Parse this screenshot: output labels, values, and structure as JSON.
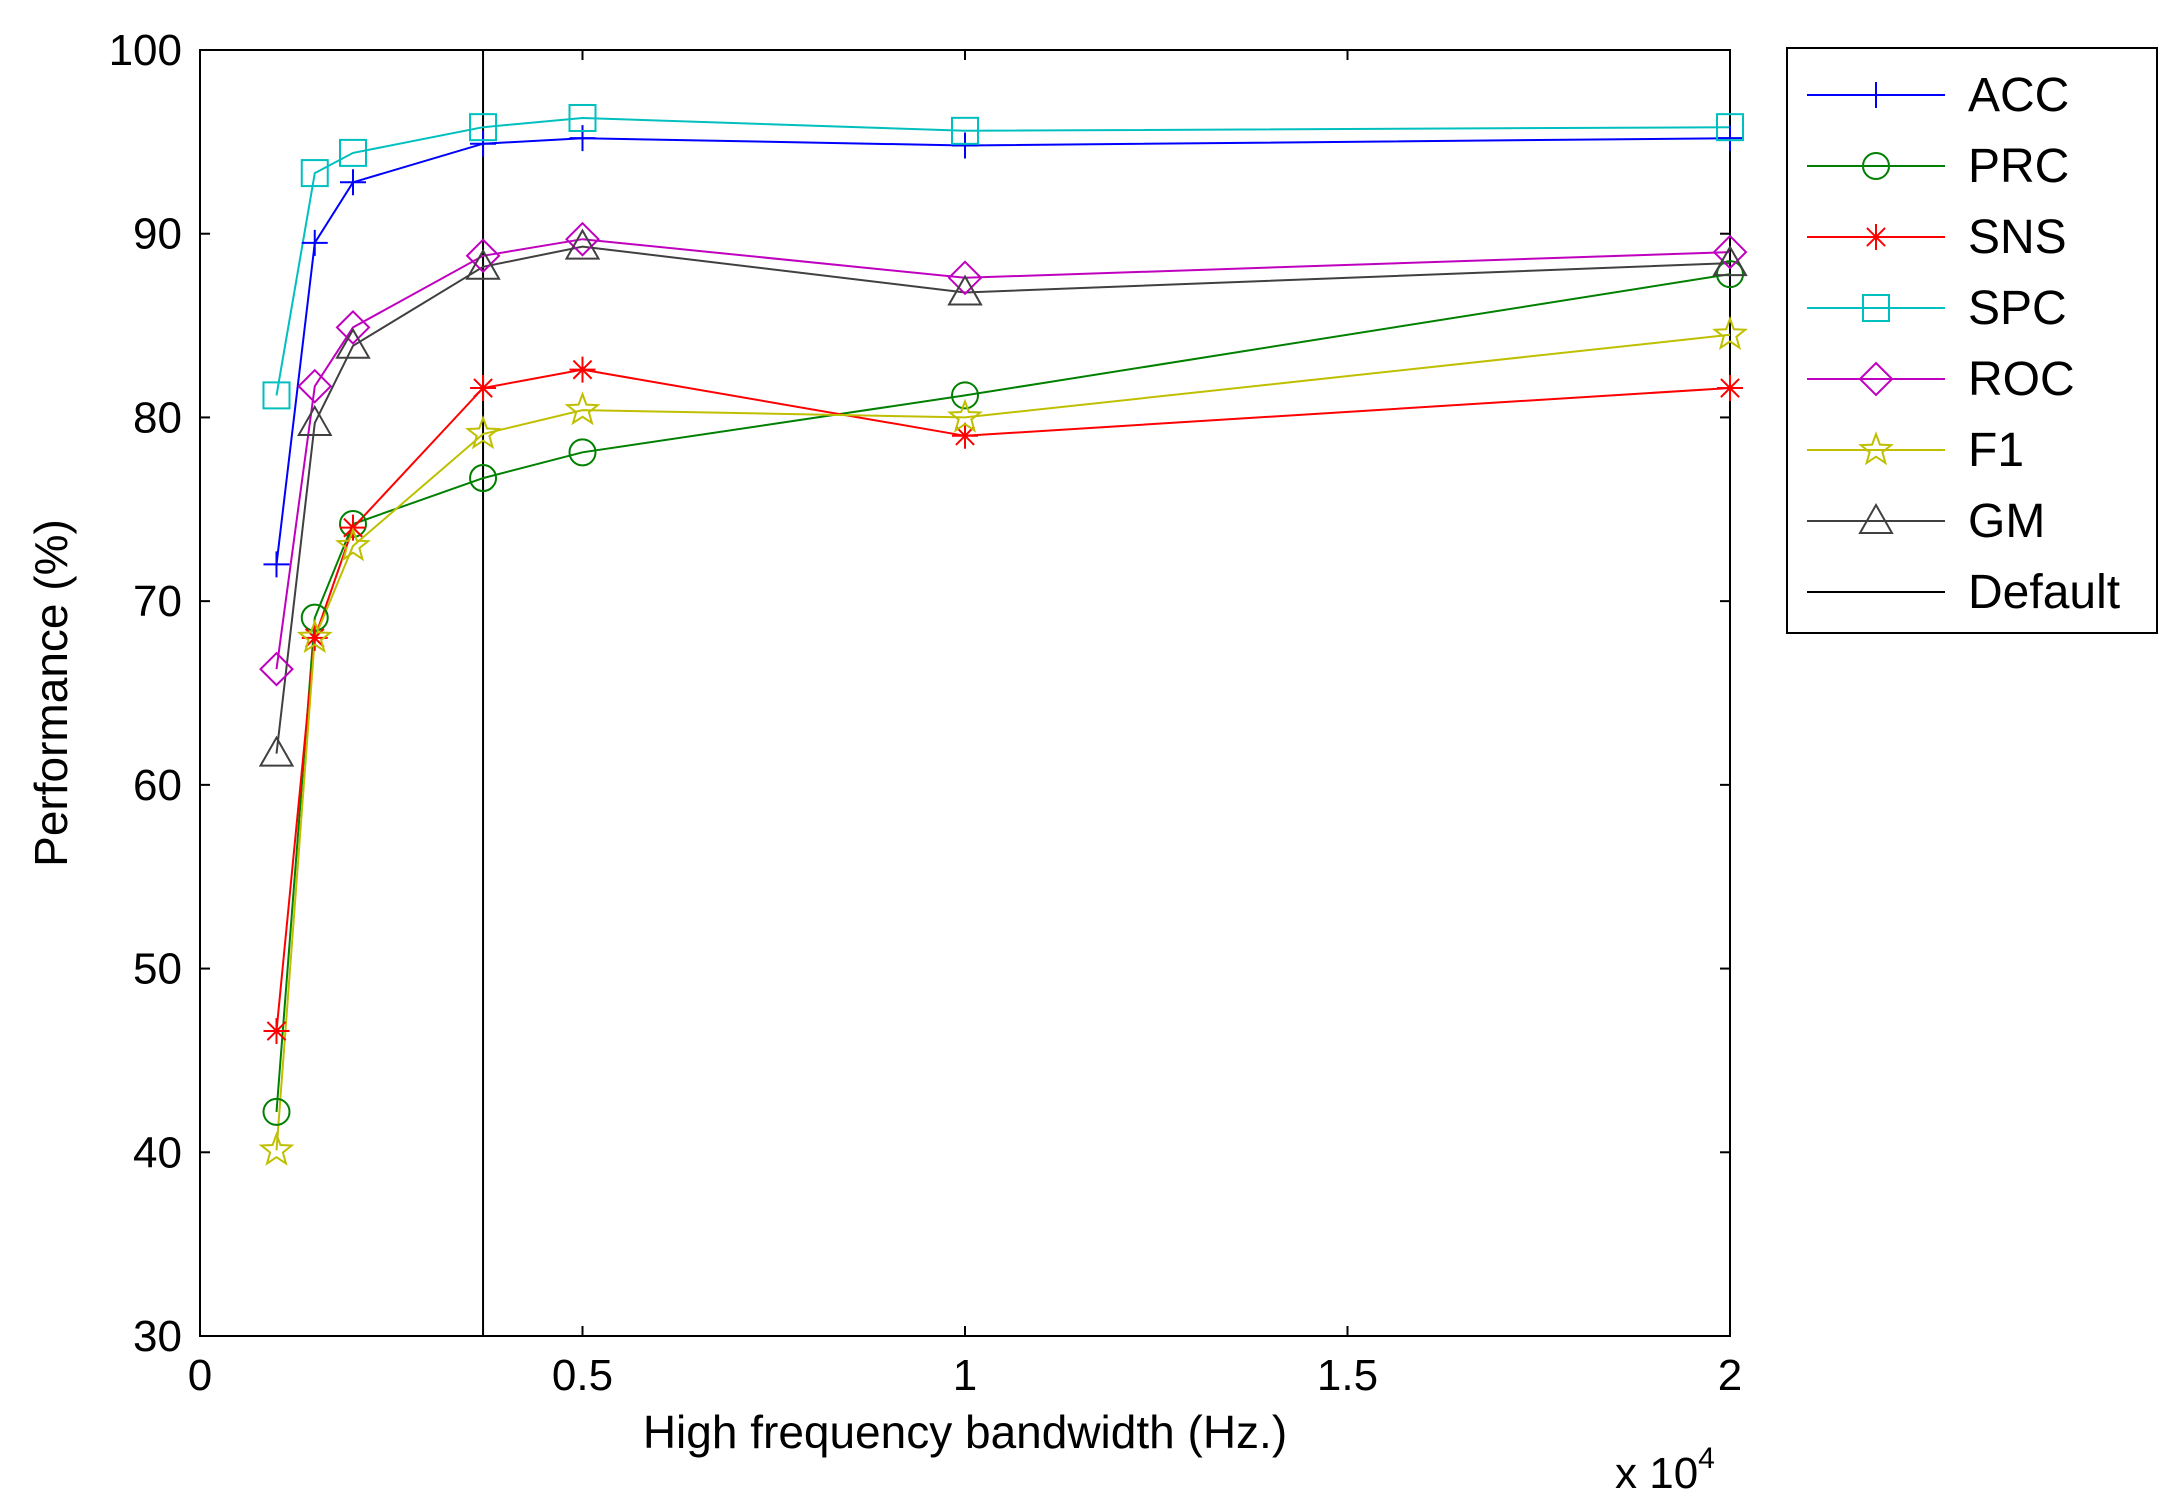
{
  "chart_data": {
    "type": "line",
    "title": "",
    "xlabel": "High frequency bandwidth (Hz.)",
    "ylabel": "Performance (%)",
    "x_multiplier_base": "x 10",
    "x_multiplier_exp": "4",
    "xlim": [
      0,
      2
    ],
    "ylim": [
      30,
      100
    ],
    "xticks": [
      0,
      0.5,
      1,
      1.5,
      2
    ],
    "xtick_labels": [
      "0",
      "0.5",
      "1",
      "1.5",
      "2"
    ],
    "yticks": [
      30,
      40,
      50,
      60,
      70,
      80,
      90,
      100
    ],
    "ytick_labels": [
      "30",
      "40",
      "50",
      "60",
      "70",
      "80",
      "90",
      "100"
    ],
    "grid": false,
    "legend_position": "outside-right-top",
    "x": [
      0.1,
      0.15,
      0.2,
      0.37,
      0.5,
      1.0,
      2.0
    ],
    "series": [
      {
        "name": "ACC",
        "color": "#0000ff",
        "marker": "plus",
        "values": [
          72.0,
          89.5,
          92.8,
          94.9,
          95.2,
          94.8,
          95.2
        ]
      },
      {
        "name": "PRC",
        "color": "#008000",
        "marker": "circle",
        "values": [
          42.2,
          69.1,
          74.2,
          76.7,
          78.1,
          81.2,
          87.8
        ]
      },
      {
        "name": "SNS",
        "color": "#ff0000",
        "marker": "asterisk",
        "values": [
          46.6,
          68.0,
          74.0,
          81.6,
          82.6,
          79.0,
          81.6
        ]
      },
      {
        "name": "SPC",
        "color": "#00bfbf",
        "marker": "square",
        "values": [
          81.2,
          93.3,
          94.4,
          95.8,
          96.3,
          95.6,
          95.8
        ]
      },
      {
        "name": "ROC",
        "color": "#bf00bf",
        "marker": "diamond",
        "values": [
          66.3,
          81.7,
          84.9,
          88.8,
          89.7,
          87.6,
          89.0
        ]
      },
      {
        "name": "F1",
        "color": "#bfbf00",
        "marker": "star",
        "values": [
          40.1,
          68.0,
          73.0,
          79.1,
          80.4,
          80.0,
          84.5
        ]
      },
      {
        "name": "GM",
        "color": "#404040",
        "marker": "triangle",
        "values": [
          61.7,
          79.7,
          83.9,
          88.2,
          89.3,
          86.8,
          88.4
        ]
      }
    ],
    "reference_line": {
      "name": "Default",
      "color": "#000000",
      "x": 0.37
    }
  }
}
